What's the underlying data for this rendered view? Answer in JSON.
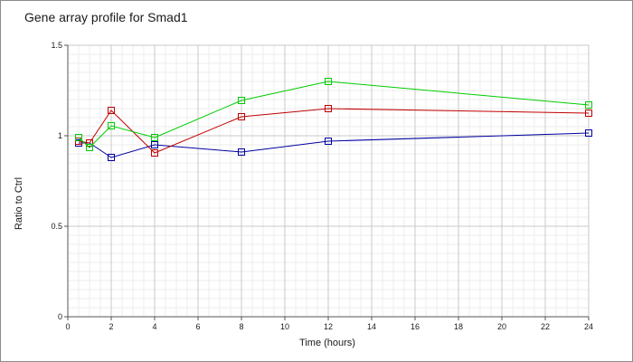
{
  "chart_data": {
    "type": "line",
    "title": "Gene array profile for Smad1",
    "xlabel": "Time (hours)",
    "ylabel": "Ratio to Ctrl",
    "xlim": [
      0,
      24
    ],
    "ylim": [
      0,
      1.5
    ],
    "x_ticks": [
      0,
      2,
      4,
      6,
      8,
      10,
      12,
      14,
      16,
      18,
      20,
      22,
      24
    ],
    "x_tick_labels": [
      "0",
      "2",
      "4",
      "6",
      "8",
      "10",
      "12",
      "14",
      "16",
      "18",
      "20",
      "22",
      "24"
    ],
    "y_ticks": [
      0,
      0.5,
      1,
      1.5
    ],
    "y_tick_labels": [
      "0",
      "0.5",
      "1",
      "1.5"
    ],
    "grid": true,
    "legend": "none",
    "marker": "square",
    "series": [
      {
        "color": "#0000a0",
        "x": [
          0.5,
          1,
          2,
          4,
          8,
          12,
          24
        ],
        "y": [
          0.96,
          0.96,
          0.88,
          0.95,
          0.91,
          0.97,
          1.015
        ]
      },
      {
        "color": "#c00000",
        "x": [
          0.5,
          1,
          2,
          4,
          8,
          12,
          24
        ],
        "y": [
          0.97,
          0.96,
          1.14,
          0.905,
          1.105,
          1.15,
          1.125
        ]
      },
      {
        "color": "#00cc00",
        "x": [
          0.5,
          1,
          2,
          4,
          8,
          12,
          24
        ],
        "y": [
          0.99,
          0.935,
          1.055,
          0.99,
          1.195,
          1.3,
          1.17
        ]
      }
    ]
  }
}
